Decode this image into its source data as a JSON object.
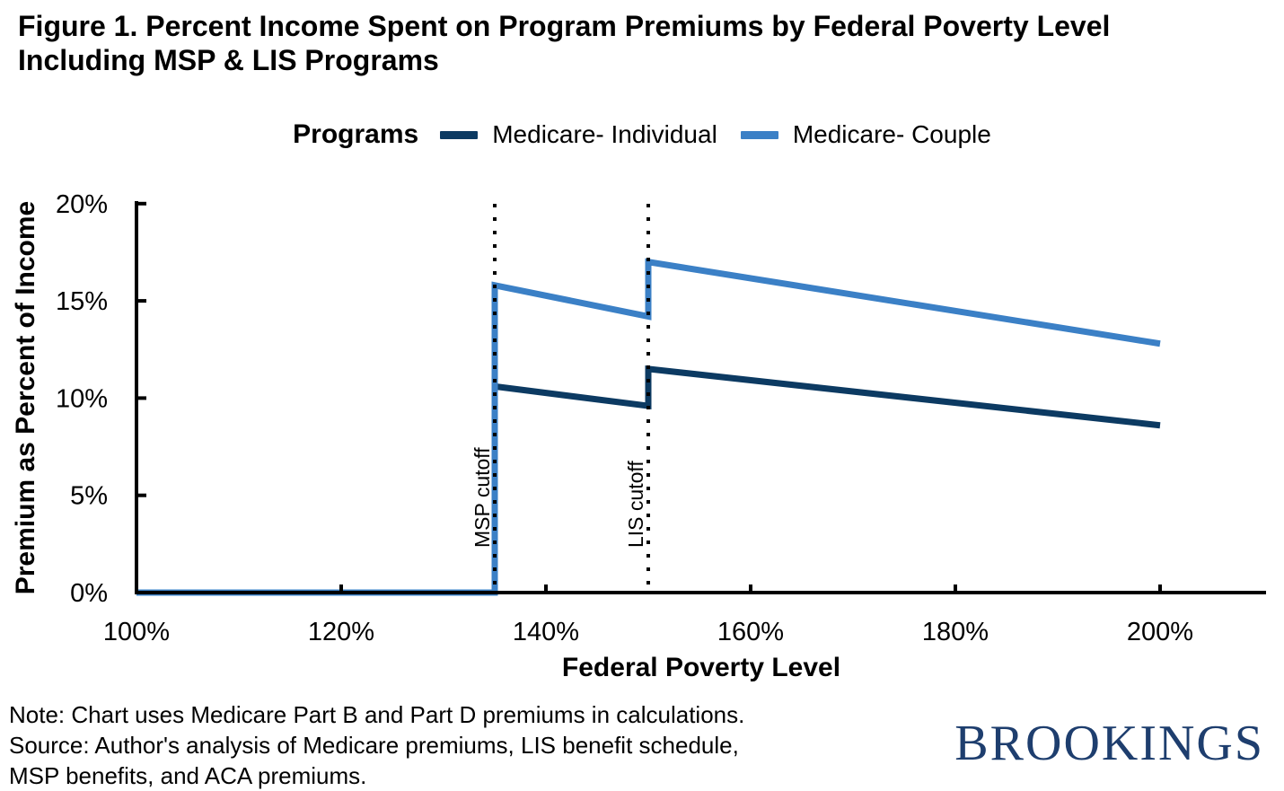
{
  "title_lines": [
    "Figure 1. Percent Income Spent on Program Premiums by Federal Poverty Level",
    "Including MSP & LIS Programs"
  ],
  "legend": {
    "title": "Programs"
  },
  "chart_data": {
    "type": "line",
    "title": "Figure 1. Percent Income Spent on Program Premiums by Federal Poverty Level Including MSP & LIS Programs",
    "xlabel": "Federal Poverty Level",
    "ylabel": "Premium as Percent of Income",
    "xlim": [
      100,
      210
    ],
    "ylim": [
      0,
      20
    ],
    "grid": false,
    "legend_position": "top",
    "x_ticks": [
      {
        "value": 100,
        "label": "100%"
      },
      {
        "value": 120,
        "label": "120%"
      },
      {
        "value": 140,
        "label": "140%"
      },
      {
        "value": 160,
        "label": "160%"
      },
      {
        "value": 180,
        "label": "180%"
      },
      {
        "value": 200,
        "label": "200%"
      }
    ],
    "y_ticks": [
      {
        "value": 0,
        "label": "0%"
      },
      {
        "value": 5,
        "label": "5%"
      },
      {
        "value": 10,
        "label": "10%"
      },
      {
        "value": 15,
        "label": "15%"
      },
      {
        "value": 20,
        "label": "20%"
      }
    ],
    "series": [
      {
        "name": "Medicare- Individual",
        "color": "#0C3A62",
        "points": [
          [
            100,
            0
          ],
          [
            135,
            0
          ],
          [
            135,
            10.6
          ],
          [
            150,
            9.6
          ],
          [
            150,
            11.5
          ],
          [
            200,
            8.6
          ]
        ]
      },
      {
        "name": "Medicare- Couple",
        "color": "#3B80C6",
        "points": [
          [
            100,
            0
          ],
          [
            135,
            0
          ],
          [
            135,
            15.8
          ],
          [
            150,
            14.2
          ],
          [
            150,
            17.0
          ],
          [
            200,
            12.8
          ]
        ]
      }
    ],
    "cutoffs": [
      {
        "label": "MSP cutoff",
        "x": 135
      },
      {
        "label": "LIS cutoff",
        "x": 150
      }
    ]
  },
  "notes": [
    "Note: Chart uses Medicare Part B and Part D premiums in calculations.",
    "Source: Author's analysis of Medicare premiums, LIS benefit schedule,",
    "MSP benefits, and ACA premiums."
  ],
  "logo_text": "BROOKINGS",
  "colors": {
    "individual": "#0C3A62",
    "couple": "#3B80C6",
    "axis": "#000000",
    "cutoff_line": "#000000",
    "logo_navy": "#1E3E6E"
  }
}
